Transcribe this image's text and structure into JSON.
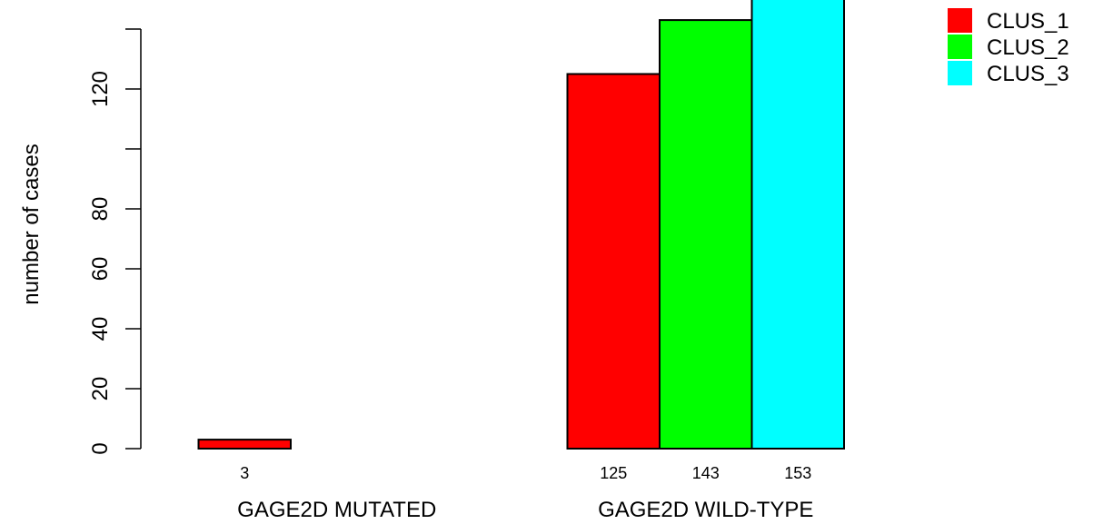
{
  "chart_data": {
    "type": "bar",
    "title": "",
    "xlabel": "",
    "ylabel": "number of cases",
    "ylim": [
      0,
      153
    ],
    "yticks": [
      0,
      20,
      40,
      60,
      80,
      100,
      120,
      140
    ],
    "ytick_labels": [
      "0",
      "20",
      "40",
      "60",
      "80",
      "",
      "120",
      ""
    ],
    "categories": [
      "GAGE2D MUTATED",
      "GAGE2D WILD-TYPE"
    ],
    "series": [
      {
        "name": "CLUS_1",
        "color": "#ff0000",
        "values": [
          3,
          125
        ]
      },
      {
        "name": "CLUS_2",
        "color": "#00ff00",
        "values": [
          0,
          143
        ]
      },
      {
        "name": "CLUS_3",
        "color": "#00ffff",
        "values": [
          0,
          153
        ]
      }
    ],
    "bar_labels": [
      [
        "3",
        "",
        ""
      ],
      [
        "125",
        "143",
        "153"
      ]
    ],
    "legend_position": "top-right",
    "grid": false
  }
}
